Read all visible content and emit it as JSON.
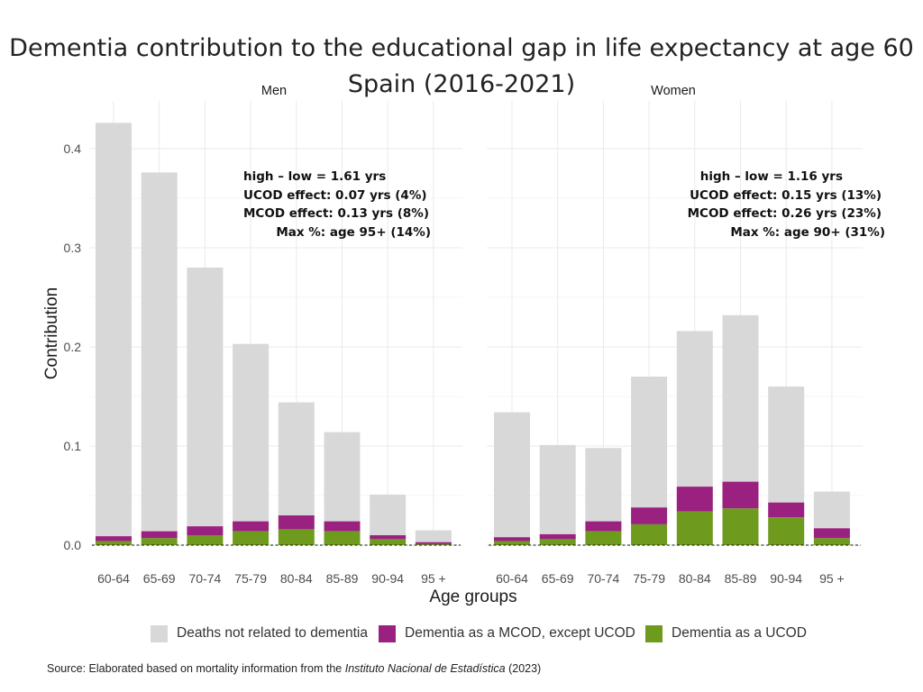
{
  "title": {
    "line1": "Dementia contribution to the educational gap in life expectancy at age 60",
    "line2": "Spain (2016-2021)"
  },
  "colors": {
    "not_dementia": "#d9d8d9",
    "mcod": "#9b2180",
    "ucod": "#6e9b1e",
    "grid": "#ebebeb",
    "axis_text": "#4d4d4d"
  },
  "chart_data": {
    "type": "bar",
    "stacked": true,
    "ylabel": "Contribution",
    "xlabel": "Age groups",
    "ylim": [
      0,
      0.43
    ],
    "yticks": [
      "0.0",
      "0.1",
      "0.2",
      "0.3",
      "0.4"
    ],
    "ytick_values": [
      0,
      0.1,
      0.2,
      0.3,
      0.4
    ],
    "categories": [
      "60-64",
      "65-69",
      "70-74",
      "75-79",
      "80-84",
      "85-89",
      "90-94",
      "95 +"
    ],
    "legend": [
      {
        "key": "not_dementia",
        "label": "Deaths not related to dementia"
      },
      {
        "key": "mcod",
        "label": "Dementia as a MCOD, except UCOD"
      },
      {
        "key": "ucod",
        "label": "Dementia as a UCOD"
      }
    ],
    "panels": [
      {
        "name": "Men",
        "totals": [
          0.426,
          0.376,
          0.28,
          0.203,
          0.144,
          0.114,
          0.051,
          0.015
        ],
        "ucod": [
          0.004,
          0.007,
          0.01,
          0.014,
          0.016,
          0.014,
          0.006,
          0.001
        ],
        "mcod": [
          0.005,
          0.007,
          0.009,
          0.01,
          0.014,
          0.01,
          0.004,
          0.002
        ],
        "annotation": {
          "line1": "high – low = 1.61 yrs",
          "line2": "UCOD effect: 0.07 yrs (4%)",
          "line3": "MCOD effect: 0.13 yrs (8%)",
          "line4": "Max %: age 95+ (14%)"
        }
      },
      {
        "name": "Women",
        "totals": [
          0.134,
          0.101,
          0.098,
          0.17,
          0.216,
          0.232,
          0.16,
          0.054
        ],
        "ucod": [
          0.004,
          0.006,
          0.014,
          0.021,
          0.034,
          0.037,
          0.028,
          0.007
        ],
        "mcod": [
          0.004,
          0.005,
          0.01,
          0.017,
          0.025,
          0.027,
          0.015,
          0.01
        ],
        "annotation": {
          "line1": "high – low = 1.16 yrs",
          "line2": "UCOD effect: 0.15 yrs (13%)",
          "line3": "MCOD effect: 0.26 yrs (23%)",
          "line4": "Max %: age 90+ (31%)"
        }
      }
    ]
  },
  "source": {
    "prefix": "Source: Elaborated based on mortality information from the ",
    "italic": "Instituto Nacional de Estadística",
    "suffix": " (2023)"
  }
}
